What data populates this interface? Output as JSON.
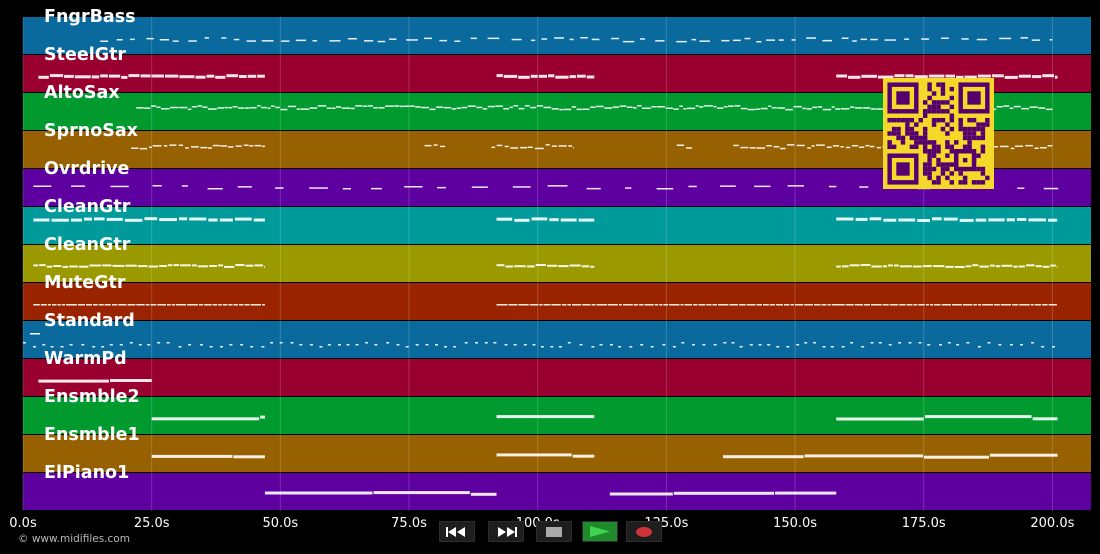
{
  "tracks": [
    {
      "label": "FngrBass",
      "color": "#0a6a9e",
      "notes": [
        [
          15,
          200
        ]
      ],
      "style": "dash-sparse"
    },
    {
      "label": "SteelGtr",
      "color": "#990030",
      "notes": [
        [
          3,
          47
        ],
        [
          92,
          111
        ],
        [
          158,
          201
        ]
      ],
      "style": "dense-thick"
    },
    {
      "label": "AltoSax",
      "color": "#009a2f",
      "notes": [
        [
          22,
          200
        ]
      ],
      "style": "melody"
    },
    {
      "label": "SprnoSax",
      "color": "#976000",
      "notes": [
        [
          21,
          47
        ],
        [
          78,
          82
        ],
        [
          91,
          107
        ],
        [
          127,
          130
        ],
        [
          138,
          200
        ]
      ],
      "style": "melody-sparse"
    },
    {
      "label": "Ovrdrive",
      "color": "#5e00a0",
      "notes": [
        [
          2,
          202
        ]
      ],
      "style": "dash-wide"
    },
    {
      "label": "CleanGtr",
      "color": "#009a9a",
      "notes": [
        [
          2,
          47
        ],
        [
          92,
          111
        ],
        [
          158,
          201
        ]
      ],
      "style": "blocks"
    },
    {
      "label": "CleanGtr",
      "color": "#9a9a00",
      "notes": [
        [
          2,
          47
        ],
        [
          92,
          111
        ],
        [
          158,
          201
        ]
      ],
      "style": "dense"
    },
    {
      "label": "MuteGtr",
      "color": "#9a2400",
      "notes": [
        [
          2,
          47
        ],
        [
          92,
          158
        ],
        [
          158,
          201
        ]
      ],
      "style": "thin"
    },
    {
      "label": "Standard",
      "color": "#0a6a9e",
      "notes": [
        [
          0,
          201
        ]
      ],
      "style": "drum"
    },
    {
      "label": "WarmPd",
      "color": "#990030",
      "notes": [
        [
          3,
          25
        ]
      ],
      "style": "long"
    },
    {
      "label": "Ensmble2",
      "color": "#009a2f",
      "notes": [
        [
          25,
          47
        ],
        [
          92,
          111
        ],
        [
          158,
          201
        ]
      ],
      "style": "long"
    },
    {
      "label": "Ensmble1",
      "color": "#976000",
      "notes": [
        [
          25,
          47
        ],
        [
          92,
          111
        ],
        [
          136,
          201
        ]
      ],
      "style": "long"
    },
    {
      "label": "ElPiano1",
      "color": "#5e00a0",
      "notes": [
        [
          47,
          92
        ],
        [
          114,
          158
        ]
      ],
      "style": "long"
    }
  ],
  "timeline": {
    "ticks": [
      "0.0s",
      "25.0s",
      "50.0s",
      "75.0s",
      "100.0s",
      "125.0s",
      "150.0s",
      "175.0s",
      "200.0s"
    ],
    "tick_values": [
      0,
      25,
      50,
      75,
      100,
      125,
      150,
      175,
      200
    ],
    "max_seconds": 207.5
  },
  "credit": "© www.midifiles.com",
  "transport": {
    "rewind": "rewind-icon",
    "fast_forward": "fast-forward-icon",
    "stop": "stop-icon",
    "play": "play-icon",
    "record": "record-icon",
    "play_color": "#1e8a2a",
    "record_color": "#d0323c"
  },
  "qr_code": {
    "fg": "#55006e",
    "bg": "#f4d92a"
  }
}
